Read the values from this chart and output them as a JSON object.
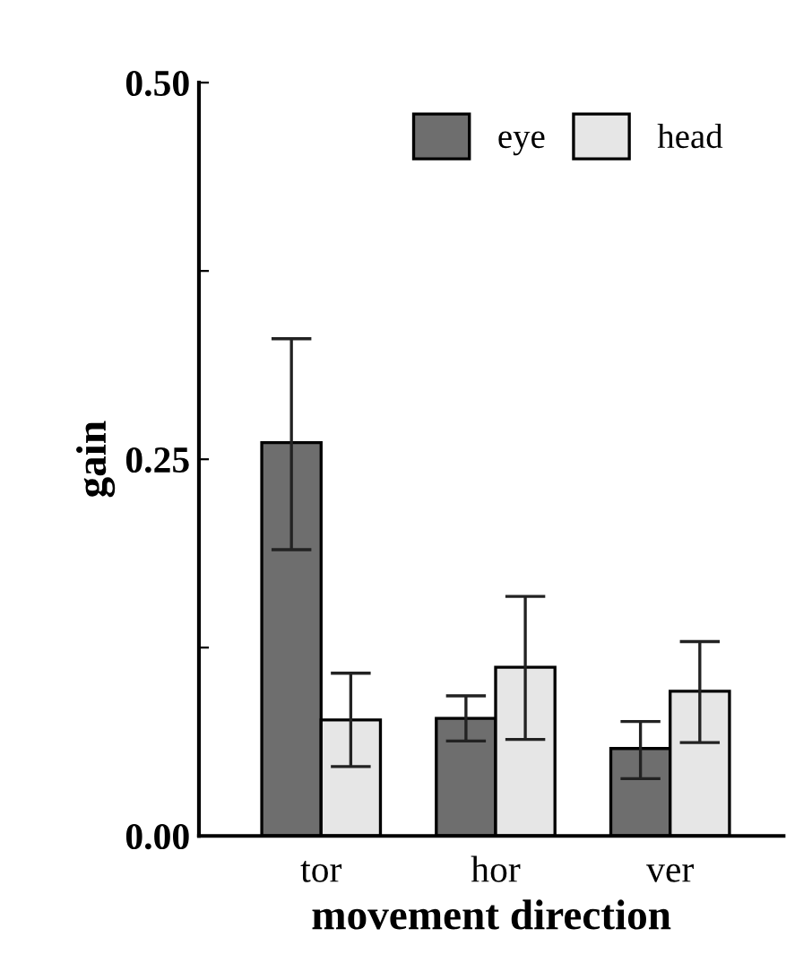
{
  "chart_data": {
    "type": "bar",
    "xlabel": "movement direction",
    "ylabel": "gain",
    "categories": [
      "tor",
      "hor",
      "ver"
    ],
    "series": [
      {
        "name": "eye",
        "color": "#6e6e6e",
        "values": [
          0.261,
          0.078,
          0.058
        ],
        "errors": [
          [
            0.19,
            0.33
          ],
          [
            0.063,
            0.093
          ],
          [
            0.038,
            0.076
          ]
        ]
      },
      {
        "name": "head",
        "color": "#e6e6e6",
        "values": [
          0.077,
          0.112,
          0.096
        ],
        "errors": [
          [
            0.046,
            0.108
          ],
          [
            0.064,
            0.159
          ],
          [
            0.062,
            0.129
          ]
        ]
      }
    ],
    "ylim": [
      0,
      0.5
    ],
    "yticks": [
      "0.00",
      {
        "value": 0.125,
        "label": null
      },
      {
        "value": 0.25,
        "label": "0.25"
      },
      {
        "value": 0.375,
        "label": null
      },
      {
        "value": 0.5,
        "label": "0.50"
      }
    ],
    "legend": "top right",
    "grid": false
  }
}
